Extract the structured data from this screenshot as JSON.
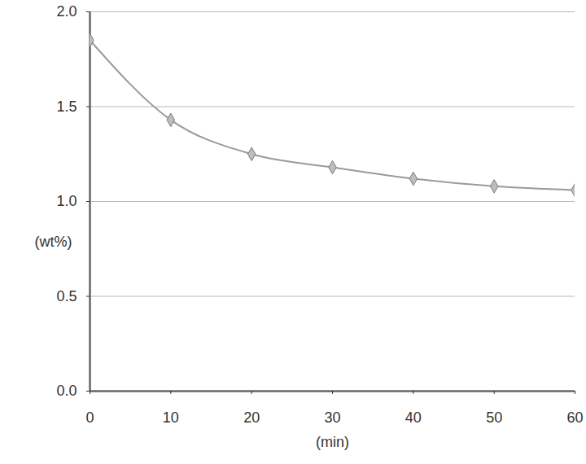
{
  "chart_data": {
    "type": "line",
    "x_label": "(min)",
    "y_label": "(wt%)",
    "x": [
      0,
      10,
      20,
      30,
      40,
      50,
      60
    ],
    "values": [
      1.85,
      1.43,
      1.25,
      1.18,
      1.12,
      1.08,
      1.06
    ],
    "color": "#9a9a9a",
    "marker": "diamond",
    "xlim": [
      0,
      60
    ],
    "xticks": [
      0,
      10,
      20,
      30,
      40,
      50,
      60
    ],
    "ylim": [
      0,
      2.0
    ],
    "yticks": [
      {
        "value": 0,
        "label": "0.0"
      },
      0.5,
      {
        "value": 1.0,
        "label": "1.0"
      },
      1.5,
      {
        "value": 2.0,
        "label": "2.0"
      }
    ],
    "grid": true
  }
}
